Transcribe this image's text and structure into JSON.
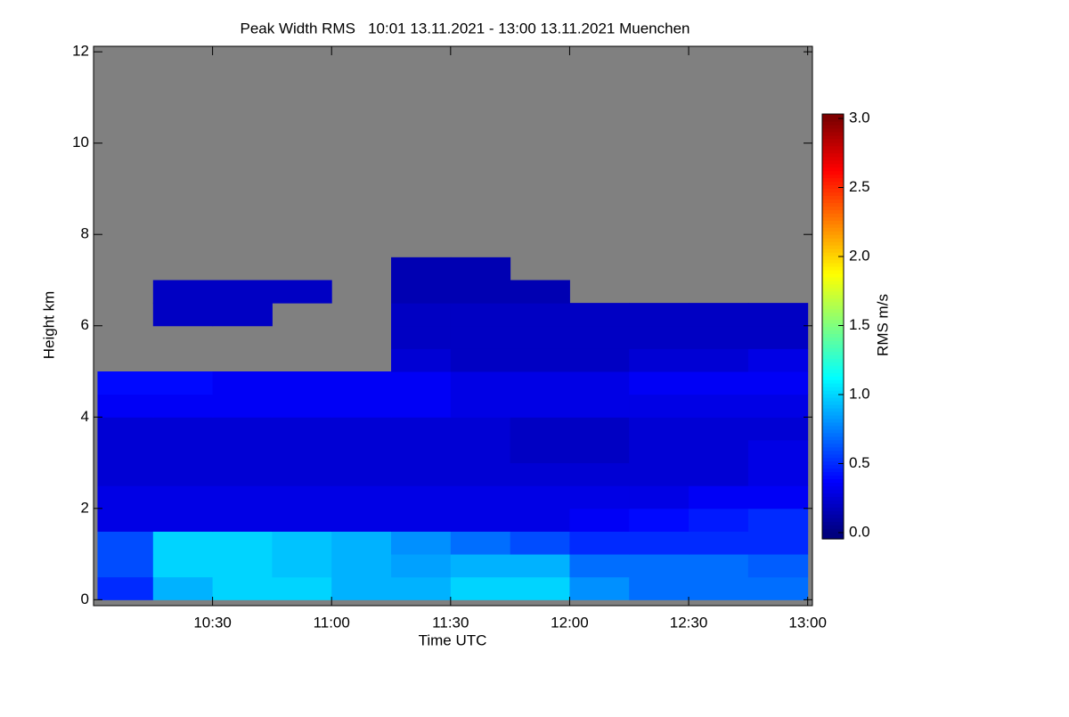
{
  "chart_data": {
    "type": "heatmap",
    "title": "Peak Width RMS   10:01 13.11.2021 - 13:00 13.11.2021 Muenchen",
    "x_label": "Time UTC",
    "y_label": "Height km",
    "x_bins": [
      10.0167,
      10.25,
      10.5,
      10.75,
      11.0,
      11.25,
      11.5,
      11.75,
      12.0,
      12.25,
      12.5,
      12.75,
      13.0
    ],
    "y_bins": [
      0,
      0.5,
      1,
      1.5,
      2,
      2.5,
      3,
      3.5,
      4,
      4.5,
      5,
      5.5,
      6,
      6.5,
      7,
      7.5
    ],
    "values": [
      [
        0.5,
        0.9,
        1.0,
        1.0,
        0.9,
        0.9,
        1.0,
        1.0,
        0.8,
        0.7,
        0.7,
        0.7
      ],
      [
        0.6,
        1.0,
        1.0,
        0.95,
        0.9,
        0.85,
        0.9,
        0.9,
        0.7,
        0.7,
        0.7,
        0.65
      ],
      [
        0.6,
        1.0,
        1.0,
        0.95,
        0.9,
        0.8,
        0.7,
        0.6,
        0.5,
        0.5,
        0.5,
        0.5
      ],
      [
        0.3,
        0.3,
        0.3,
        0.3,
        0.3,
        0.3,
        0.3,
        0.3,
        0.35,
        0.4,
        0.45,
        0.5
      ],
      [
        0.3,
        0.3,
        0.3,
        0.3,
        0.3,
        0.3,
        0.3,
        0.3,
        0.3,
        0.3,
        0.35,
        0.35
      ],
      [
        0.25,
        0.25,
        0.25,
        0.25,
        0.25,
        0.25,
        0.25,
        0.25,
        0.25,
        0.25,
        0.25,
        0.3
      ],
      [
        0.25,
        0.25,
        0.25,
        0.25,
        0.25,
        0.25,
        0.25,
        0.2,
        0.2,
        0.25,
        0.25,
        0.3
      ],
      [
        0.25,
        0.25,
        0.25,
        0.25,
        0.25,
        0.25,
        0.25,
        0.2,
        0.2,
        0.25,
        0.25,
        0.25
      ],
      [
        0.35,
        0.35,
        0.35,
        0.35,
        0.35,
        0.35,
        0.3,
        0.3,
        0.3,
        0.3,
        0.3,
        0.3
      ],
      [
        0.4,
        0.4,
        0.35,
        0.35,
        0.35,
        0.35,
        0.3,
        0.3,
        0.3,
        0.35,
        0.35,
        0.35
      ],
      [
        null,
        null,
        null,
        null,
        null,
        0.25,
        0.2,
        0.2,
        0.2,
        0.25,
        0.25,
        0.3
      ],
      [
        null,
        null,
        null,
        null,
        null,
        0.2,
        0.2,
        0.2,
        0.2,
        0.2,
        0.2,
        0.2
      ],
      [
        null,
        0.2,
        0.2,
        null,
        null,
        0.2,
        0.2,
        0.2,
        0.2,
        0.2,
        0.2,
        0.2
      ],
      [
        null,
        0.2,
        0.2,
        0.2,
        null,
        0.15,
        0.15,
        0.15,
        null,
        null,
        null,
        null
      ],
      [
        null,
        null,
        null,
        null,
        null,
        0.15,
        0.15,
        null,
        null,
        null,
        null,
        null
      ]
    ],
    "xlim": [
      10.0,
      13.02
    ],
    "ylim": [
      -0.13,
      12.12
    ],
    "xticks": [
      {
        "value": 10.5,
        "label": "10:30"
      },
      {
        "value": 11.0,
        "label": "11:00"
      },
      {
        "value": 11.5,
        "label": "11:30"
      },
      {
        "value": 12.0,
        "label": "12:00"
      },
      {
        "value": 12.5,
        "label": "12:30"
      },
      {
        "value": 13.0,
        "label": "13:00"
      }
    ],
    "yticks": [
      0,
      2,
      4,
      6,
      8,
      10,
      12
    ],
    "missing_color": "#808080",
    "colorbar": {
      "label": "RMS m/s",
      "lim": [
        0,
        3
      ],
      "ticks": [
        {
          "value": 0,
          "label": "0.0"
        },
        {
          "value": 0.5,
          "label": "0.5"
        },
        {
          "value": 1,
          "label": "1.0"
        },
        {
          "value": 1.5,
          "label": "1.5"
        },
        {
          "value": 2,
          "label": "2.0"
        },
        {
          "value": 2.5,
          "label": "2.5"
        },
        {
          "value": 3,
          "label": "3.0"
        }
      ],
      "colormap": [
        "#00007f",
        "#0000ff",
        "#007fff",
        "#00ffff",
        "#7fff7f",
        "#ffff00",
        "#ff7f00",
        "#ff0000",
        "#7f0000"
      ]
    }
  }
}
